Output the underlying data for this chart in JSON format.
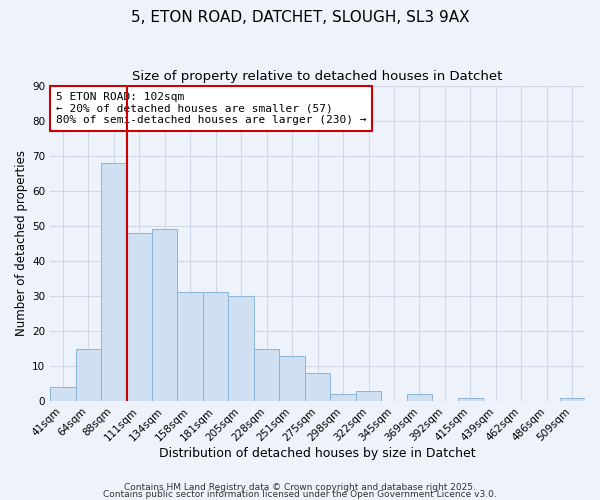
{
  "title": "5, ETON ROAD, DATCHET, SLOUGH, SL3 9AX",
  "subtitle": "Size of property relative to detached houses in Datchet",
  "xlabel": "Distribution of detached houses by size in Datchet",
  "ylabel": "Number of detached properties",
  "bin_labels": [
    "41sqm",
    "64sqm",
    "88sqm",
    "111sqm",
    "134sqm",
    "158sqm",
    "181sqm",
    "205sqm",
    "228sqm",
    "251sqm",
    "275sqm",
    "298sqm",
    "322sqm",
    "345sqm",
    "369sqm",
    "392sqm",
    "415sqm",
    "439sqm",
    "462sqm",
    "486sqm",
    "509sqm"
  ],
  "bar_values": [
    4,
    15,
    68,
    48,
    49,
    31,
    31,
    30,
    15,
    13,
    8,
    2,
    3,
    0,
    2,
    0,
    1,
    0,
    0,
    0,
    1
  ],
  "bar_color": "#cfe0f3",
  "bar_edge_color": "#8ab4d8",
  "ylim": [
    0,
    90
  ],
  "yticks": [
    0,
    10,
    20,
    30,
    40,
    50,
    60,
    70,
    80,
    90
  ],
  "vline_x_index": 3,
  "vline_color": "#cc0000",
  "annotation_text": "5 ETON ROAD: 102sqm\n← 20% of detached houses are smaller (57)\n80% of semi-detached houses are larger (230) →",
  "annotation_box_color": "#ffffff",
  "annotation_box_edge_color": "#cc0000",
  "footer1": "Contains HM Land Registry data © Crown copyright and database right 2025.",
  "footer2": "Contains public sector information licensed under the Open Government Licence v3.0.",
  "background_color": "#eef2fb",
  "plot_background_color": "#eef2fb",
  "grid_color": "#d0d8e8",
  "title_fontsize": 11,
  "subtitle_fontsize": 9.5,
  "xlabel_fontsize": 9,
  "ylabel_fontsize": 8.5,
  "tick_fontsize": 7.5,
  "annotation_fontsize": 8,
  "footer_fontsize": 6.5
}
